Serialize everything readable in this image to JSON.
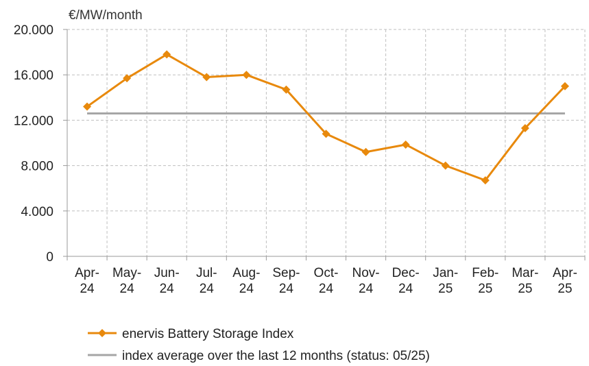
{
  "chart_data": {
    "type": "line",
    "ylabel": "€/MW/month",
    "ylim": [
      0,
      20000
    ],
    "yticks": [
      {
        "value": 0,
        "label": "0"
      },
      {
        "value": 4000,
        "label": "4.000"
      },
      {
        "value": 8000,
        "label": "8.000"
      },
      {
        "value": 12000,
        "label": "12.000"
      },
      {
        "value": 16000,
        "label": "16.000"
      },
      {
        "value": 20000,
        "label": "20.000"
      }
    ],
    "categories": [
      {
        "top": "Apr-",
        "bottom": "24"
      },
      {
        "top": "May-",
        "bottom": "24"
      },
      {
        "top": "Jun-",
        "bottom": "24"
      },
      {
        "top": "Jul-",
        "bottom": "24"
      },
      {
        "top": "Aug-",
        "bottom": "24"
      },
      {
        "top": "Sep-",
        "bottom": "24"
      },
      {
        "top": "Oct-",
        "bottom": "24"
      },
      {
        "top": "Nov-",
        "bottom": "24"
      },
      {
        "top": "Dec-",
        "bottom": "24"
      },
      {
        "top": "Jan-",
        "bottom": "25"
      },
      {
        "top": "Feb-",
        "bottom": "25"
      },
      {
        "top": "Mar-",
        "bottom": "25"
      },
      {
        "top": "Apr-",
        "bottom": "25"
      }
    ],
    "series": [
      {
        "name": "enervis Battery Storage Index",
        "color": "#E8890C",
        "marker": "diamond",
        "values": [
          13200,
          15700,
          17800,
          15800,
          16000,
          14700,
          10800,
          9200,
          9850,
          8000,
          6700,
          11300,
          15000
        ]
      },
      {
        "name": "index average over the last 12 months (status: 05/25)",
        "color": "#A6A6A6",
        "marker": "none",
        "values": [
          12600,
          12600,
          12600,
          12600,
          12600,
          12600,
          12600,
          12600,
          12600,
          12600,
          12600,
          12600,
          12600
        ]
      }
    ],
    "grid": true,
    "legend_position": "bottom-left"
  }
}
